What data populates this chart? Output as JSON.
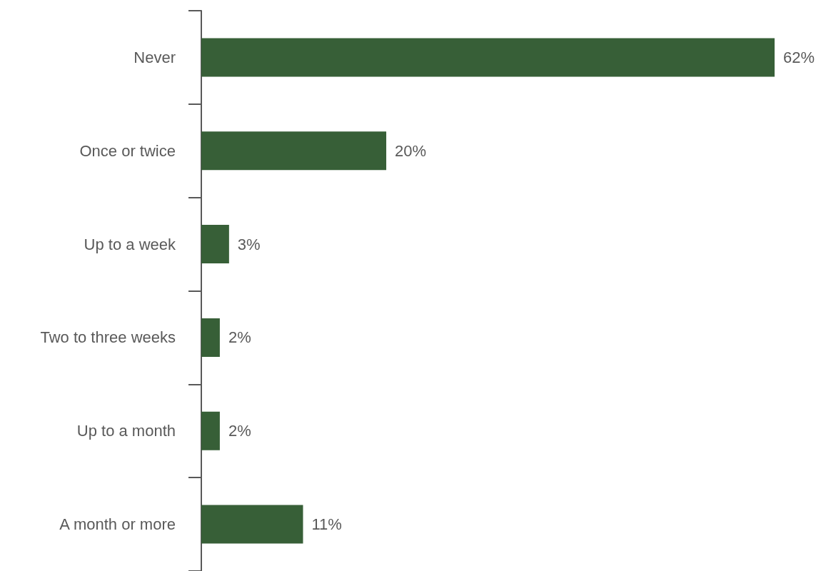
{
  "chart_data": {
    "type": "bar",
    "orientation": "horizontal",
    "categories": [
      "Never",
      "Once or twice",
      "Up to a week",
      "Two to three weeks",
      "Up to a month",
      "A month or more"
    ],
    "values": [
      62,
      20,
      3,
      2,
      2,
      11
    ],
    "value_labels": [
      "62%",
      "20%",
      "3%",
      "2%",
      "2%",
      "11%"
    ],
    "color": "#375f37"
  }
}
